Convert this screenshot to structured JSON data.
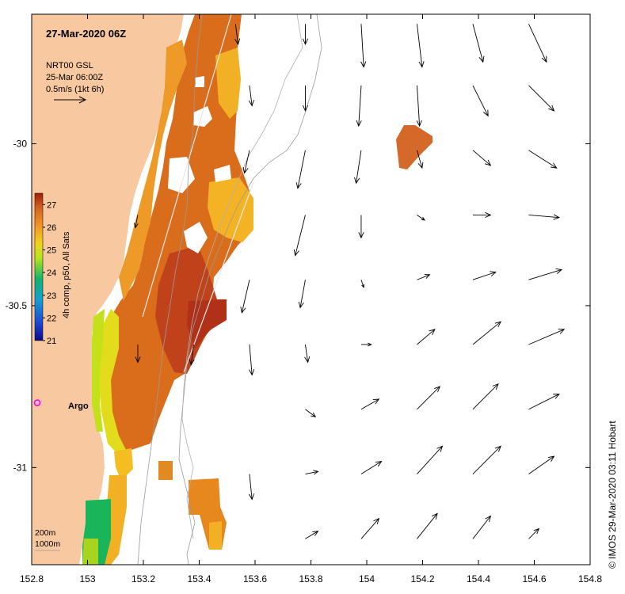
{
  "title": "27-Mar-2020 06Z",
  "product": {
    "line1": "NRT00 GSL",
    "line2": "25-Mar 06:00Z",
    "line3": "0.5m/s (1kt 6h)"
  },
  "colorbar": {
    "label": "4h comp, p50, All Sats",
    "ticks": [
      "27",
      "26",
      "25",
      "24",
      "23",
      "22",
      "21"
    ],
    "min": 21,
    "max": 27.5
  },
  "axes": {
    "x_ticks": [
      "152.8",
      "153",
      "153.2",
      "153.4",
      "153.6",
      "153.8",
      "154",
      "154.2",
      "154.4",
      "154.6",
      "154.8"
    ],
    "y_ticks": [
      "-30",
      "-30.5",
      "-31"
    ],
    "x_range": [
      152.8,
      154.8
    ],
    "y_range": [
      -31.3,
      -29.6
    ]
  },
  "argo": {
    "label": "Argo",
    "lon": 152.82,
    "lat": -30.8
  },
  "isobaths": {
    "shallow": "200m",
    "deep": "1000m"
  },
  "credit": "© IMOS 29-Mar-2020 03:11 Hobart",
  "colors": {
    "land": "#f8c8a0",
    "argo": "#ff00ff",
    "sst_hot": "#c0421a"
  },
  "current_vectors": [
    {
      "lon": 153.53,
      "lat": -29.63,
      "u": 0.02,
      "v": -0.16
    },
    {
      "lon": 153.78,
      "lat": -29.63,
      "u": 0.0,
      "v": -0.16
    },
    {
      "lon": 153.98,
      "lat": -29.63,
      "u": 0.02,
      "v": -0.34
    },
    {
      "lon": 154.18,
      "lat": -29.63,
      "u": 0.04,
      "v": -0.34
    },
    {
      "lon": 154.38,
      "lat": -29.63,
      "u": 0.08,
      "v": -0.3
    },
    {
      "lon": 154.58,
      "lat": -29.63,
      "u": 0.14,
      "v": -0.3
    },
    {
      "lon": 153.58,
      "lat": -29.82,
      "u": 0.02,
      "v": -0.16
    },
    {
      "lon": 153.78,
      "lat": -29.82,
      "u": 0.0,
      "v": -0.2
    },
    {
      "lon": 153.98,
      "lat": -29.82,
      "u": -0.02,
      "v": -0.32
    },
    {
      "lon": 154.18,
      "lat": -29.82,
      "u": 0.02,
      "v": -0.32
    },
    {
      "lon": 154.38,
      "lat": -29.82,
      "u": 0.12,
      "v": -0.24
    },
    {
      "lon": 154.58,
      "lat": -29.82,
      "u": 0.2,
      "v": -0.2
    },
    {
      "lon": 153.58,
      "lat": -30.02,
      "u": -0.04,
      "v": -0.18
    },
    {
      "lon": 153.78,
      "lat": -30.02,
      "u": -0.06,
      "v": -0.3
    },
    {
      "lon": 153.98,
      "lat": -30.02,
      "u": -0.04,
      "v": -0.26
    },
    {
      "lon": 154.18,
      "lat": -30.02,
      "u": 0.04,
      "v": -0.14
    },
    {
      "lon": 154.38,
      "lat": -30.02,
      "u": 0.14,
      "v": -0.12
    },
    {
      "lon": 154.58,
      "lat": -30.02,
      "u": 0.22,
      "v": -0.14
    },
    {
      "lon": 153.78,
      "lat": -30.22,
      "u": -0.08,
      "v": -0.32
    },
    {
      "lon": 153.98,
      "lat": -30.22,
      "u": 0.0,
      "v": -0.18
    },
    {
      "lon": 154.18,
      "lat": -30.22,
      "u": 0.06,
      "v": -0.04
    },
    {
      "lon": 154.38,
      "lat": -30.22,
      "u": 0.14,
      "v": 0.0
    },
    {
      "lon": 154.58,
      "lat": -30.22,
      "u": 0.24,
      "v": -0.02
    },
    {
      "lon": 153.58,
      "lat": -30.42,
      "u": -0.06,
      "v": -0.26
    },
    {
      "lon": 153.78,
      "lat": -30.42,
      "u": -0.04,
      "v": -0.22
    },
    {
      "lon": 153.98,
      "lat": -30.42,
      "u": 0.02,
      "v": -0.06
    },
    {
      "lon": 154.18,
      "lat": -30.42,
      "u": 0.1,
      "v": 0.04
    },
    {
      "lon": 154.38,
      "lat": -30.42,
      "u": 0.18,
      "v": 0.06
    },
    {
      "lon": 154.58,
      "lat": -30.42,
      "u": 0.26,
      "v": 0.08
    },
    {
      "lon": 153.58,
      "lat": -30.62,
      "u": 0.02,
      "v": -0.24
    },
    {
      "lon": 153.78,
      "lat": -30.62,
      "u": 0.02,
      "v": -0.14
    },
    {
      "lon": 153.98,
      "lat": -30.62,
      "u": 0.08,
      "v": 0.0
    },
    {
      "lon": 154.18,
      "lat": -30.62,
      "u": 0.14,
      "v": 0.12
    },
    {
      "lon": 154.38,
      "lat": -30.62,
      "u": 0.22,
      "v": 0.18
    },
    {
      "lon": 154.58,
      "lat": -30.62,
      "u": 0.28,
      "v": 0.12
    },
    {
      "lon": 153.78,
      "lat": -30.82,
      "u": 0.08,
      "v": -0.06
    },
    {
      "lon": 153.98,
      "lat": -30.82,
      "u": 0.14,
      "v": 0.08
    },
    {
      "lon": 154.18,
      "lat": -30.82,
      "u": 0.18,
      "v": 0.18
    },
    {
      "lon": 154.38,
      "lat": -30.82,
      "u": 0.2,
      "v": 0.2
    },
    {
      "lon": 154.58,
      "lat": -30.82,
      "u": 0.24,
      "v": 0.12
    },
    {
      "lon": 153.58,
      "lat": -31.02,
      "u": 0.02,
      "v": -0.2
    },
    {
      "lon": 153.78,
      "lat": -31.02,
      "u": 0.1,
      "v": 0.02
    },
    {
      "lon": 153.98,
      "lat": -31.02,
      "u": 0.16,
      "v": 0.1
    },
    {
      "lon": 154.18,
      "lat": -31.02,
      "u": 0.2,
      "v": 0.22
    },
    {
      "lon": 154.38,
      "lat": -31.02,
      "u": 0.22,
      "v": 0.22
    },
    {
      "lon": 154.58,
      "lat": -31.02,
      "u": 0.2,
      "v": 0.14
    },
    {
      "lon": 153.78,
      "lat": -31.22,
      "u": 0.1,
      "v": 0.06
    },
    {
      "lon": 153.98,
      "lat": -31.22,
      "u": 0.14,
      "v": 0.16
    },
    {
      "lon": 154.18,
      "lat": -31.22,
      "u": 0.16,
      "v": 0.2
    },
    {
      "lon": 154.38,
      "lat": -31.22,
      "u": 0.14,
      "v": 0.18
    },
    {
      "lon": 154.58,
      "lat": -31.22,
      "u": 0.08,
      "v": 0.08
    },
    {
      "lon": 153.38,
      "lat": -30.62,
      "u": -0.02,
      "v": -0.16
    },
    {
      "lon": 153.18,
      "lat": -30.62,
      "u": 0.0,
      "v": -0.14
    },
    {
      "lon": 153.18,
      "lat": -30.22,
      "u": -0.02,
      "v": -0.1
    }
  ]
}
